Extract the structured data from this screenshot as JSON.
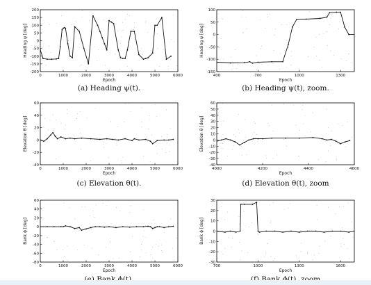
{
  "page": {
    "background": "#ffffff",
    "bottom_band_color": "#eaf1f7"
  },
  "chart_data": [
    {
      "id": "a",
      "type": "line",
      "caption": "(a)  Heading ψ(t).",
      "xlabel": "Epoch",
      "ylabel": "Heading  ψ   [deg]",
      "xlim": [
        0,
        6000
      ],
      "ylim": [
        -200,
        200
      ],
      "xticks": [
        0,
        1000,
        2000,
        3000,
        4000,
        5000,
        6000
      ],
      "yticks": [
        -200,
        -150,
        -100,
        -50,
        0,
        50,
        100,
        150,
        200
      ],
      "series": [
        {
          "x": [
            0,
            120,
            300,
            500,
            700,
            800,
            870,
            950,
            1000,
            1050,
            1100,
            1200,
            1300,
            1400,
            1500,
            1700,
            1900,
            2100,
            2300,
            2500,
            2600,
            2700,
            2800,
            2900,
            3000,
            3100,
            3200,
            3400,
            3500,
            3600,
            3700,
            3800,
            3950,
            4100,
            4300,
            4500,
            4600,
            4700,
            4900,
            5000,
            5100,
            5300,
            5500,
            5700
          ],
          "y": [
            -60,
            -115,
            -120,
            -120,
            -118,
            -115,
            -40,
            70,
            80,
            85,
            80,
            -20,
            -100,
            -110,
            90,
            60,
            -50,
            -150,
            160,
            100,
            60,
            20,
            -20,
            -60,
            130,
            120,
            110,
            -60,
            -110,
            -115,
            -115,
            -60,
            60,
            60,
            -90,
            -120,
            -115,
            -110,
            -80,
            100,
            100,
            150,
            -120,
            -100
          ]
        }
      ]
    },
    {
      "id": "b",
      "type": "line",
      "caption": "(b)  Heading ψ(t), zoom.",
      "xlabel": "Epoch",
      "ylabel": "Heading  ψ   [deg]",
      "xlim": [
        400,
        1400
      ],
      "ylim": [
        -150,
        100
      ],
      "xticks": [
        400,
        700,
        1000,
        1300
      ],
      "yticks": [
        -150,
        -100,
        -50,
        0,
        50,
        100
      ],
      "series": [
        {
          "x": [
            400,
            500,
            600,
            640,
            660,
            700,
            800,
            880,
            920,
            950,
            980,
            1050,
            1150,
            1200,
            1220,
            1270,
            1300,
            1330,
            1360,
            1400
          ],
          "y": [
            -112,
            -115,
            -114,
            -110,
            -116,
            -112,
            -110,
            -110,
            -40,
            30,
            60,
            62,
            65,
            70,
            88,
            90,
            90,
            30,
            0,
            0
          ]
        }
      ]
    },
    {
      "id": "c",
      "type": "line",
      "caption": "(c)  Elevation θ(t).",
      "xlabel": "Epoch",
      "ylabel": "Elevation  θ   [deg]",
      "xlim": [
        0,
        6000
      ],
      "ylim": [
        -40,
        60
      ],
      "xticks": [
        0,
        1000,
        2000,
        3000,
        4000,
        5000,
        6000
      ],
      "yticks": [
        -40,
        -20,
        0,
        20,
        40,
        60
      ],
      "series": [
        {
          "x": [
            0,
            150,
            300,
            450,
            550,
            650,
            750,
            900,
            1100,
            1300,
            1500,
            1800,
            2200,
            2600,
            2900,
            3150,
            3400,
            3700,
            4000,
            4100,
            4300,
            4600,
            4800,
            4900,
            5100,
            5400,
            5600,
            5800
          ],
          "y": [
            0,
            -2,
            2,
            8,
            12,
            6,
            2,
            5,
            2,
            3,
            2,
            3,
            2,
            1,
            2,
            1,
            0,
            2,
            -1,
            2,
            0,
            1,
            -2,
            -6,
            -1,
            0,
            0,
            1
          ]
        }
      ]
    },
    {
      "id": "d",
      "type": "line",
      "caption": "(d)  Elevation θ(t), zoom",
      "xlabel": "Epoch",
      "ylabel": "Elevation  θ   [deg]",
      "xlim": [
        4000,
        4600
      ],
      "ylim": [
        -40,
        60
      ],
      "xticks": [
        4000,
        4200,
        4400,
        4600
      ],
      "yticks": [
        -40,
        -30,
        -20,
        -10,
        0,
        10,
        20,
        30,
        40,
        50,
        60
      ],
      "series": [
        {
          "x": [
            4000,
            4020,
            4040,
            4060,
            4080,
            4100,
            4120,
            4140,
            4160,
            4180,
            4200,
            4240,
            4300,
            4360,
            4420,
            4460,
            4480,
            4500,
            4520,
            4540,
            4560,
            4580
          ],
          "y": [
            -2,
            0,
            2,
            0,
            -3,
            -8,
            -4,
            0,
            2,
            2,
            2,
            3,
            3,
            3,
            4,
            2,
            0,
            1,
            -2,
            -6,
            -3,
            -1
          ]
        }
      ]
    },
    {
      "id": "e",
      "type": "line",
      "caption": "(e)  Bank ϕ(t).",
      "xlabel": "Epoch",
      "ylabel": "Bank  ϕ   [deg]",
      "xlim": [
        0,
        6000
      ],
      "ylim": [
        -80,
        60
      ],
      "xticks": [
        0,
        1000,
        2000,
        3000,
        4000,
        5000,
        6000
      ],
      "yticks": [
        -80,
        -60,
        -40,
        -20,
        0,
        20,
        40,
        60
      ],
      "series": [
        {
          "x": [
            0,
            300,
            600,
            900,
            1000,
            1100,
            1300,
            1500,
            1700,
            1800,
            2000,
            2200,
            2400,
            2600,
            2800,
            3000,
            3300,
            3600,
            3900,
            4200,
            4500,
            4700,
            4800,
            4900,
            5000,
            5100,
            5200,
            5400,
            5600,
            5800
          ],
          "y": [
            0,
            0,
            0,
            0,
            0,
            2,
            0,
            -4,
            -2,
            -8,
            -5,
            -2,
            0,
            0,
            -1,
            0,
            -2,
            0,
            -1,
            0,
            0,
            1,
            0,
            -4,
            -2,
            0,
            0,
            -2,
            0,
            1
          ]
        }
      ]
    },
    {
      "id": "f",
      "type": "line",
      "caption": "(f)  Bank ϕ(t), zoom",
      "xlabel": "Epoch",
      "ylabel": "Bank  ϕ   [deg]",
      "xlim": [
        700,
        1700
      ],
      "ylim": [
        -30,
        30
      ],
      "xticks": [
        700,
        1000,
        1300,
        1600
      ],
      "yticks": [
        -30,
        -20,
        -10,
        0,
        10,
        20,
        30
      ],
      "series": [
        {
          "x": [
            700,
            760,
            800,
            840,
            870,
            875,
            900,
            960,
            990,
            1000,
            1010,
            1060,
            1120,
            1180,
            1240,
            1300,
            1360,
            1420,
            1480,
            1540,
            1600,
            1660,
            1700
          ],
          "y": [
            0,
            -1,
            0,
            -1,
            0,
            26,
            26,
            26,
            28,
            0,
            -1,
            0,
            0,
            -1,
            0,
            -1,
            0,
            0,
            -1,
            0,
            0,
            -1,
            0
          ]
        }
      ]
    }
  ]
}
